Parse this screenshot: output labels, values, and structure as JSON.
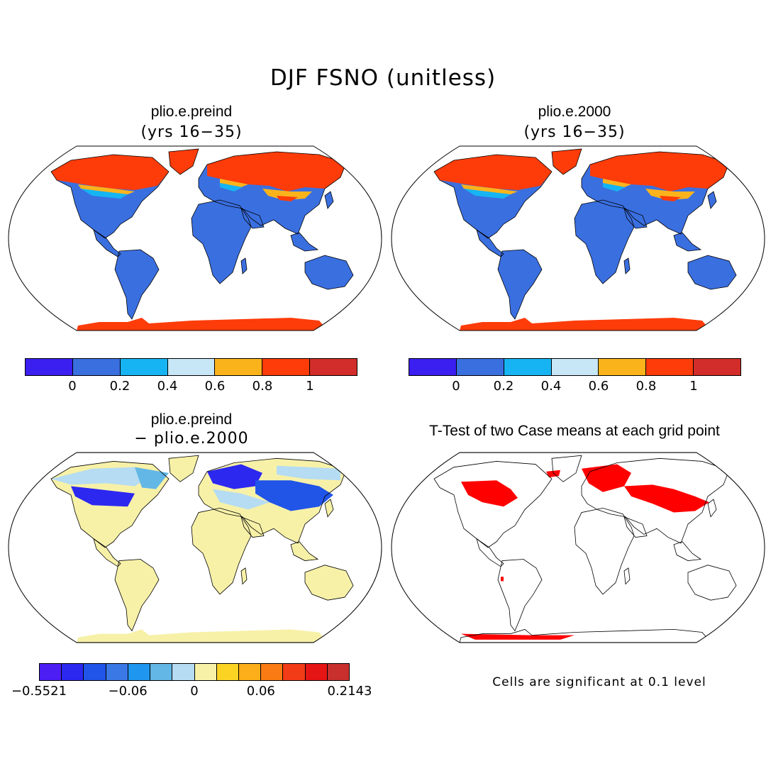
{
  "title": "DJF FSNO (unitless)",
  "panels": {
    "p1": {
      "title": "plio.e.preind",
      "subtitle": "(yrs 16−35)"
    },
    "p2": {
      "title": "plio.e.2000",
      "subtitle": "(yrs 16−35)"
    },
    "p3": {
      "title": "plio.e.preind",
      "subtitle": "− plio.e.2000"
    },
    "p4": {
      "title": "T-Test of two Case means at each grid point",
      "note": "Cells are significant at 0.1 level"
    }
  },
  "colorbars": {
    "abs": {
      "colors": [
        "#3b1ef0",
        "#3a6fe0",
        "#16b4f2",
        "#c7e6f6",
        "#fbb31c",
        "#fd3c0a",
        "#d22d2a"
      ],
      "ticks": [
        "0",
        "0.2",
        "0.4",
        "0.6",
        "0.8",
        "1"
      ]
    },
    "diff": {
      "colors": [
        "#4d1ef4",
        "#2c28f0",
        "#2155e8",
        "#3a78e6",
        "#1f97ee",
        "#63b7e6",
        "#b5dcf2",
        "#f7f1a8",
        "#fbd323",
        "#fbae1a",
        "#fa7b13",
        "#f23c17",
        "#e61515",
        "#c8302e"
      ],
      "ticks": [
        "−0.5521",
        "−0.06",
        "0",
        "0.06",
        "0.2143"
      ]
    }
  },
  "map_colors": {
    "land_low": "#3a6fe0",
    "snow_high": "#fd3c0a",
    "snow_mid": "#fbb31c",
    "snow_light": "#16b4f2",
    "diff_base": "#f7f1a8",
    "diff_neg": "#2c28f0",
    "diff_neg_light": "#b5dcf2",
    "signif": "#ff0000",
    "land_outline": "#000000"
  }
}
